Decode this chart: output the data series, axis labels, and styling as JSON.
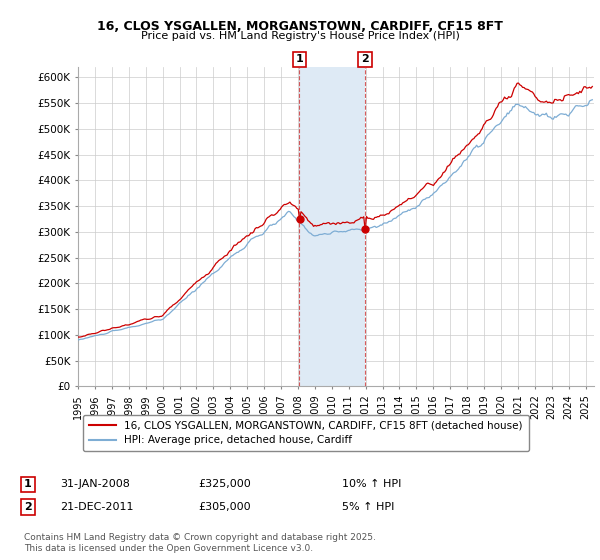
{
  "title_line1": "16, CLOS YSGALLEN, MORGANSTOWN, CARDIFF, CF15 8FT",
  "title_line2": "Price paid vs. HM Land Registry's House Price Index (HPI)",
  "ylim": [
    0,
    620000
  ],
  "yticks": [
    0,
    50000,
    100000,
    150000,
    200000,
    250000,
    300000,
    350000,
    400000,
    450000,
    500000,
    550000,
    600000
  ],
  "ytick_labels": [
    "£0",
    "£50K",
    "£100K",
    "£150K",
    "£200K",
    "£250K",
    "£300K",
    "£350K",
    "£400K",
    "£450K",
    "£500K",
    "£550K",
    "£600K"
  ],
  "xlim_start": 1995.0,
  "xlim_end": 2025.5,
  "shade_start": 2008.08,
  "shade_end": 2011.97,
  "marker1_x": 2008.08,
  "marker1_y": 325000,
  "marker1_label": "1",
  "marker1_date": "31-JAN-2008",
  "marker1_price": "£325,000",
  "marker1_hpi": "10% ↑ HPI",
  "marker2_x": 2011.97,
  "marker2_y": 305000,
  "marker2_label": "2",
  "marker2_date": "21-DEC-2011",
  "marker2_price": "£305,000",
  "marker2_hpi": "5% ↑ HPI",
  "line1_color": "#cc0000",
  "line2_color": "#7eadd4",
  "line1_label": "16, CLOS YSGALLEN, MORGANSTOWN, CARDIFF, CF15 8FT (detached house)",
  "line2_label": "HPI: Average price, detached house, Cardiff",
  "shade_color": "#deeaf5",
  "footer_text": "Contains HM Land Registry data © Crown copyright and database right 2025.\nThis data is licensed under the Open Government Licence v3.0.",
  "background_color": "#ffffff",
  "grid_color": "#cccccc"
}
